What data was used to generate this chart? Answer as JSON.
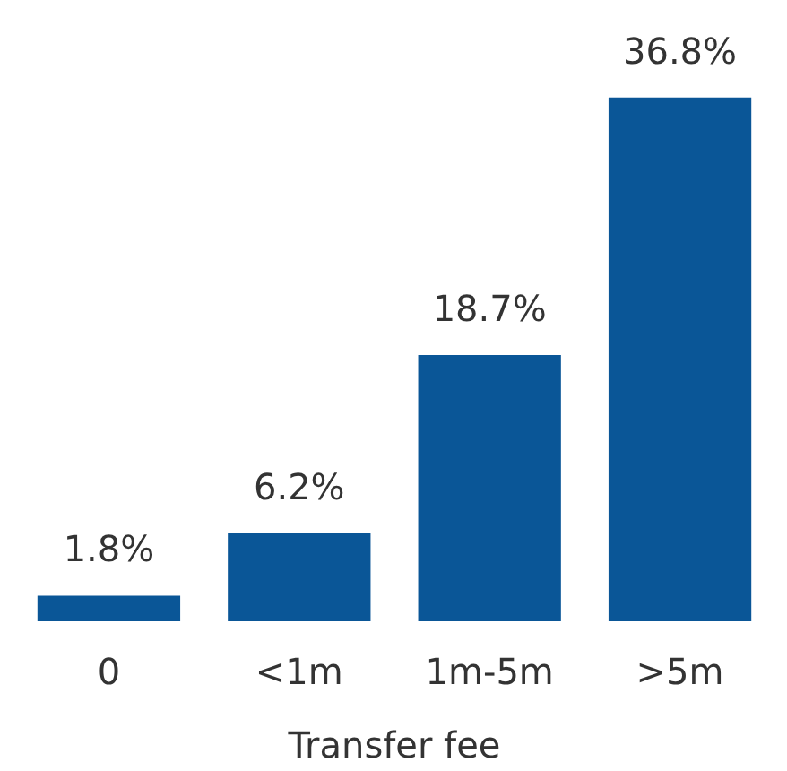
{
  "chart_data": {
    "type": "bar",
    "xlabel": "Transfer fee",
    "categories": [
      "0",
      "<1m",
      "1m-5m",
      ">5m"
    ],
    "values": [
      1.8,
      6.2,
      18.7,
      36.8
    ],
    "value_labels": [
      "1.8%",
      "6.2%",
      "18.7%",
      "36.8%"
    ],
    "color": "#0a5697",
    "grid": false
  }
}
